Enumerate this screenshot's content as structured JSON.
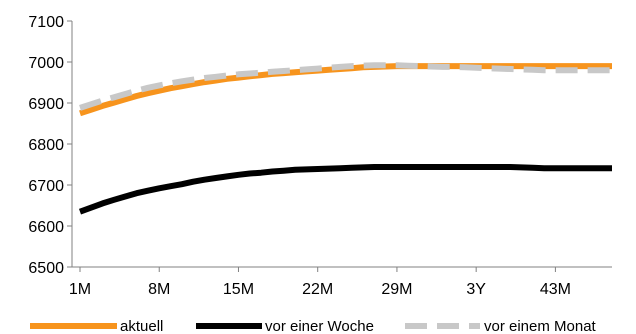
{
  "chart_data": {
    "type": "line",
    "title": "",
    "xlabel": "",
    "ylabel": "",
    "categories": [
      "1M",
      "2M",
      "3M",
      "4M",
      "5M",
      "6M",
      "7M",
      "8M",
      "9M",
      "10M",
      "11M",
      "12M",
      "13M",
      "14M",
      "15M",
      "16M",
      "17M",
      "18M",
      "19M",
      "20M",
      "21M",
      "22M",
      "23M",
      "24M",
      "25M",
      "26M",
      "27M",
      "28M",
      "29M",
      "30M",
      "31M",
      "32M",
      "33M",
      "34M",
      "35M",
      "36M",
      "37M",
      "38M",
      "39M",
      "40M",
      "41M",
      "42M",
      "43M",
      "44M",
      "45M",
      "46M",
      "47M",
      "48M"
    ],
    "x_tick_labels": [
      "1M",
      "8M",
      "15M",
      "22M",
      "29M",
      "3Y",
      "43M"
    ],
    "ylim": [
      6500,
      7100
    ],
    "y_ticks": [
      6500,
      6600,
      6700,
      6800,
      6900,
      7000,
      7100
    ],
    "grid": false,
    "legend_position": "bottom",
    "series": [
      {
        "name": "aktuell",
        "color": "#f7941d",
        "dash": "solid",
        "values": [
          6875,
          6884,
          6893,
          6901,
          6909,
          6917,
          6924,
          6930,
          6936,
          6941,
          6946,
          6951,
          6955,
          6959,
          6962,
          6965,
          6968,
          6971,
          6973,
          6975,
          6977,
          6979,
          6981,
          6983,
          6985,
          6987,
          6988,
          6989,
          6990,
          6990,
          6990,
          6990,
          6990,
          6990,
          6990,
          6990,
          6990,
          6990,
          6990,
          6990,
          6990,
          6990,
          6990,
          6990,
          6990,
          6990,
          6990,
          6990
        ]
      },
      {
        "name": "vor einer Woche",
        "color": "#000000",
        "dash": "solid",
        "values": [
          6635,
          6645,
          6655,
          6664,
          6672,
          6680,
          6686,
          6692,
          6697,
          6702,
          6708,
          6713,
          6717,
          6721,
          6725,
          6728,
          6730,
          6733,
          6735,
          6737,
          6738,
          6739,
          6740,
          6741,
          6742,
          6743,
          6744,
          6744,
          6744,
          6744,
          6744,
          6744,
          6744,
          6744,
          6744,
          6744,
          6744,
          6744,
          6744,
          6743,
          6742,
          6741,
          6741,
          6741,
          6741,
          6741,
          6741,
          6741
        ]
      },
      {
        "name": "vor einem Monat",
        "color": "#c8c8c8",
        "dash": "dashed",
        "values": [
          6888,
          6897,
          6906,
          6914,
          6922,
          6930,
          6937,
          6943,
          6948,
          6953,
          6957,
          6961,
          6964,
          6967,
          6970,
          6972,
          6974,
          6976,
          6978,
          6980,
          6982,
          6984,
          6986,
          6988,
          6990,
          6991,
          6992,
          6992,
          6992,
          6991,
          6990,
          6989,
          6988,
          6988,
          6987,
          6986,
          6985,
          6984,
          6983,
          6982,
          6981,
          6980,
          6980,
          6980,
          6980,
          6980,
          6980,
          6980
        ]
      }
    ]
  }
}
